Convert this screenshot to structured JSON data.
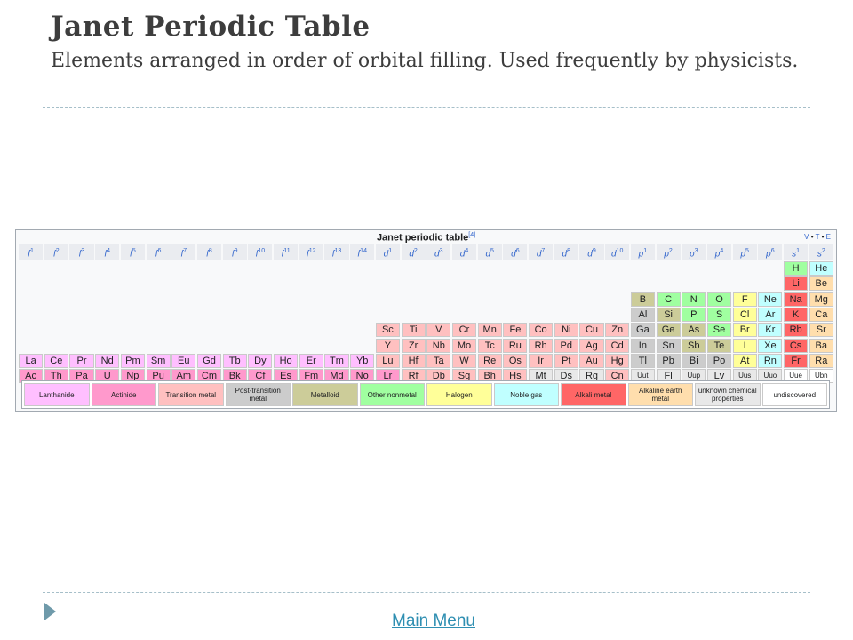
{
  "slide": {
    "title": "Janet Periodic Table",
    "subtitle": "Elements arranged in order of orbital filling. Used frequently by physicists.",
    "main_menu_link": "Main Menu"
  },
  "table": {
    "title": "Janet periodic table",
    "ref": "[4]",
    "vte": [
      "V",
      "T",
      "E"
    ],
    "headers": [
      [
        "f",
        "1"
      ],
      [
        "f",
        "2"
      ],
      [
        "f",
        "3"
      ],
      [
        "f",
        "4"
      ],
      [
        "f",
        "5"
      ],
      [
        "f",
        "6"
      ],
      [
        "f",
        "7"
      ],
      [
        "f",
        "8"
      ],
      [
        "f",
        "9"
      ],
      [
        "f",
        "10"
      ],
      [
        "f",
        "11"
      ],
      [
        "f",
        "12"
      ],
      [
        "f",
        "13"
      ],
      [
        "f",
        "14"
      ],
      [
        "d",
        "1"
      ],
      [
        "d",
        "2"
      ],
      [
        "d",
        "3"
      ],
      [
        "d",
        "4"
      ],
      [
        "d",
        "5"
      ],
      [
        "d",
        "6"
      ],
      [
        "d",
        "7"
      ],
      [
        "d",
        "8"
      ],
      [
        "d",
        "9"
      ],
      [
        "d",
        "10"
      ],
      [
        "p",
        "1"
      ],
      [
        "p",
        "2"
      ],
      [
        "p",
        "3"
      ],
      [
        "p",
        "4"
      ],
      [
        "p",
        "5"
      ],
      [
        "p",
        "6"
      ],
      [
        "s",
        "1"
      ],
      [
        "s",
        "2"
      ]
    ],
    "rows": [
      [
        [
          30,
          "H",
          "#a0ffa0"
        ],
        [
          31,
          "He",
          "#c0ffff"
        ]
      ],
      [
        [
          30,
          "Li",
          "#ff6666"
        ],
        [
          31,
          "Be",
          "#ffdead"
        ]
      ],
      [
        [
          24,
          "B",
          "#cccc99"
        ],
        [
          25,
          "C",
          "#a0ffa0"
        ],
        [
          26,
          "N",
          "#a0ffa0"
        ],
        [
          27,
          "O",
          "#a0ffa0"
        ],
        [
          28,
          "F",
          "#ffff99"
        ],
        [
          29,
          "Ne",
          "#c0ffff"
        ],
        [
          30,
          "Na",
          "#ff6666"
        ],
        [
          31,
          "Mg",
          "#ffdead"
        ]
      ],
      [
        [
          24,
          "Al",
          "#cccccc"
        ],
        [
          25,
          "Si",
          "#cccc99"
        ],
        [
          26,
          "P",
          "#a0ffa0"
        ],
        [
          27,
          "S",
          "#a0ffa0"
        ],
        [
          28,
          "Cl",
          "#ffff99"
        ],
        [
          29,
          "Ar",
          "#c0ffff"
        ],
        [
          30,
          "K",
          "#ff6666"
        ],
        [
          31,
          "Ca",
          "#ffdead"
        ]
      ],
      [
        [
          14,
          "Sc",
          "#ffc0c0"
        ],
        [
          15,
          "Ti",
          "#ffc0c0"
        ],
        [
          16,
          "V",
          "#ffc0c0"
        ],
        [
          17,
          "Cr",
          "#ffc0c0"
        ],
        [
          18,
          "Mn",
          "#ffc0c0"
        ],
        [
          19,
          "Fe",
          "#ffc0c0"
        ],
        [
          20,
          "Co",
          "#ffc0c0"
        ],
        [
          21,
          "Ni",
          "#ffc0c0"
        ],
        [
          22,
          "Cu",
          "#ffc0c0"
        ],
        [
          23,
          "Zn",
          "#ffc0c0"
        ],
        [
          24,
          "Ga",
          "#cccccc"
        ],
        [
          25,
          "Ge",
          "#cccc99"
        ],
        [
          26,
          "As",
          "#cccc99"
        ],
        [
          27,
          "Se",
          "#a0ffa0"
        ],
        [
          28,
          "Br",
          "#ffff99"
        ],
        [
          29,
          "Kr",
          "#c0ffff"
        ],
        [
          30,
          "Rb",
          "#ff6666"
        ],
        [
          31,
          "Sr",
          "#ffdead"
        ]
      ],
      [
        [
          14,
          "Y",
          "#ffc0c0"
        ],
        [
          15,
          "Zr",
          "#ffc0c0"
        ],
        [
          16,
          "Nb",
          "#ffc0c0"
        ],
        [
          17,
          "Mo",
          "#ffc0c0"
        ],
        [
          18,
          "Tc",
          "#ffc0c0"
        ],
        [
          19,
          "Ru",
          "#ffc0c0"
        ],
        [
          20,
          "Rh",
          "#ffc0c0"
        ],
        [
          21,
          "Pd",
          "#ffc0c0"
        ],
        [
          22,
          "Ag",
          "#ffc0c0"
        ],
        [
          23,
          "Cd",
          "#ffc0c0"
        ],
        [
          24,
          "In",
          "#cccccc"
        ],
        [
          25,
          "Sn",
          "#cccccc"
        ],
        [
          26,
          "Sb",
          "#cccc99"
        ],
        [
          27,
          "Te",
          "#cccc99"
        ],
        [
          28,
          "I",
          "#ffff99"
        ],
        [
          29,
          "Xe",
          "#c0ffff"
        ],
        [
          30,
          "Cs",
          "#ff6666"
        ],
        [
          31,
          "Ba",
          "#ffdead"
        ]
      ],
      [
        [
          0,
          "La",
          "#ffbfff"
        ],
        [
          1,
          "Ce",
          "#ffbfff"
        ],
        [
          2,
          "Pr",
          "#ffbfff"
        ],
        [
          3,
          "Nd",
          "#ffbfff"
        ],
        [
          4,
          "Pm",
          "#ffbfff"
        ],
        [
          5,
          "Sm",
          "#ffbfff"
        ],
        [
          6,
          "Eu",
          "#ffbfff"
        ],
        [
          7,
          "Gd",
          "#ffbfff"
        ],
        [
          8,
          "Tb",
          "#ffbfff"
        ],
        [
          9,
          "Dy",
          "#ffbfff"
        ],
        [
          10,
          "Ho",
          "#ffbfff"
        ],
        [
          11,
          "Er",
          "#ffbfff"
        ],
        [
          12,
          "Tm",
          "#ffbfff"
        ],
        [
          13,
          "Yb",
          "#ffbfff"
        ],
        [
          14,
          "Lu",
          "#ffc0c0"
        ],
        [
          15,
          "Hf",
          "#ffc0c0"
        ],
        [
          16,
          "Ta",
          "#ffc0c0"
        ],
        [
          17,
          "W",
          "#ffc0c0"
        ],
        [
          18,
          "Re",
          "#ffc0c0"
        ],
        [
          19,
          "Os",
          "#ffc0c0"
        ],
        [
          20,
          "Ir",
          "#ffc0c0"
        ],
        [
          21,
          "Pt",
          "#ffc0c0"
        ],
        [
          22,
          "Au",
          "#ffc0c0"
        ],
        [
          23,
          "Hg",
          "#ffc0c0"
        ],
        [
          24,
          "Tl",
          "#cccccc"
        ],
        [
          25,
          "Pb",
          "#cccccc"
        ],
        [
          26,
          "Bi",
          "#cccccc"
        ],
        [
          27,
          "Po",
          "#cccccc"
        ],
        [
          28,
          "At",
          "#ffff99"
        ],
        [
          29,
          "Rn",
          "#c0ffff"
        ],
        [
          30,
          "Fr",
          "#ff6666"
        ],
        [
          31,
          "Ra",
          "#ffdead"
        ]
      ],
      [
        [
          0,
          "Ac",
          "#ff99cc"
        ],
        [
          1,
          "Th",
          "#ff99cc"
        ],
        [
          2,
          "Pa",
          "#ff99cc"
        ],
        [
          3,
          "U",
          "#ff99cc"
        ],
        [
          4,
          "Np",
          "#ff99cc"
        ],
        [
          5,
          "Pu",
          "#ff99cc"
        ],
        [
          6,
          "Am",
          "#ff99cc"
        ],
        [
          7,
          "Cm",
          "#ff99cc"
        ],
        [
          8,
          "Bk",
          "#ff99cc"
        ],
        [
          9,
          "Cf",
          "#ff99cc"
        ],
        [
          10,
          "Es",
          "#ff99cc"
        ],
        [
          11,
          "Fm",
          "#ff99cc"
        ],
        [
          12,
          "Md",
          "#ff99cc"
        ],
        [
          13,
          "No",
          "#ff99cc"
        ],
        [
          14,
          "Lr",
          "#ff99cc"
        ],
        [
          15,
          "Rf",
          "#ffc0c0"
        ],
        [
          16,
          "Db",
          "#ffc0c0"
        ],
        [
          17,
          "Sg",
          "#ffc0c0"
        ],
        [
          18,
          "Bh",
          "#ffc0c0"
        ],
        [
          19,
          "Hs",
          "#ffc0c0"
        ],
        [
          20,
          "Mt",
          "#e8e8e8"
        ],
        [
          21,
          "Ds",
          "#e8e8e8"
        ],
        [
          22,
          "Rg",
          "#e8e8e8"
        ],
        [
          23,
          "Cn",
          "#ffc0c0"
        ],
        [
          24,
          "Uut",
          "#e8e8e8"
        ],
        [
          25,
          "Fl",
          "#e8e8e8"
        ],
        [
          26,
          "Uup",
          "#e8e8e8"
        ],
        [
          27,
          "Lv",
          "#e8e8e8"
        ],
        [
          28,
          "Uus",
          "#e8e8e8"
        ],
        [
          29,
          "Uuo",
          "#e8e8e8"
        ],
        [
          30,
          "Uue",
          "#ffffff"
        ],
        [
          31,
          "Ubn",
          "#ffffff"
        ]
      ]
    ],
    "legend": [
      {
        "label": "Lanthanide",
        "color": "#ffbfff"
      },
      {
        "label": "Actinide",
        "color": "#ff99cc"
      },
      {
        "label": "Transition metal",
        "color": "#ffc0c0"
      },
      {
        "label": "Post-transition metal",
        "color": "#cccccc"
      },
      {
        "label": "Metalloid",
        "color": "#cccc99"
      },
      {
        "label": "Other nonmetal",
        "color": "#a0ffa0"
      },
      {
        "label": "Halogen",
        "color": "#ffff99"
      },
      {
        "label": "Noble gas",
        "color": "#c0ffff"
      },
      {
        "label": "Alkali metal",
        "color": "#ff6666"
      },
      {
        "label": "Alkaline earth metal",
        "color": "#ffdead"
      },
      {
        "label": "unknown chemical properties",
        "color": "#e8e8e8"
      },
      {
        "label": "undiscovered",
        "color": "#ffffff"
      }
    ]
  }
}
